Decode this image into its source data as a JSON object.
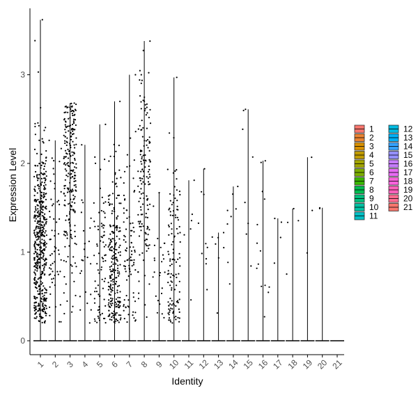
{
  "chart_data": {
    "type": "scatter",
    "subtype": "violin-jitter",
    "xlabel": "Identity",
    "ylabel": "Expression Level",
    "ylim": [
      0,
      3.7
    ],
    "yticks": [
      0,
      1,
      2,
      3
    ],
    "categories": [
      "1",
      "2",
      "3",
      "4",
      "5",
      "6",
      "7",
      "8",
      "9",
      "10",
      "11",
      "12",
      "13",
      "14",
      "15",
      "16",
      "17",
      "18",
      "19",
      "20",
      "21"
    ],
    "max_values": [
      3.62,
      2.26,
      2.68,
      2.21,
      2.44,
      2.7,
      3.0,
      3.38,
      1.67,
      2.97,
      1.81,
      1.94,
      1.22,
      1.74,
      2.61,
      2.03,
      1.38,
      1.49,
      2.07,
      1.5,
      0
    ],
    "point_counts": [
      480,
      60,
      230,
      25,
      80,
      230,
      90,
      150,
      25,
      120,
      6,
      10,
      7,
      8,
      8,
      14,
      4,
      4,
      3,
      2,
      0
    ],
    "point_centers": [
      1.1,
      1.1,
      1.9,
      0.9,
      1.0,
      0.8,
      1.0,
      1.7,
      0.8,
      0.9,
      1.2,
      1.3,
      0.9,
      1.2,
      1.7,
      1.0,
      1.1,
      0.9,
      1.4,
      1.4,
      0
    ],
    "zero_level": 0,
    "legend_position": "right",
    "legend": {
      "entries": [
        "1",
        "2",
        "3",
        "4",
        "5",
        "6",
        "7",
        "8",
        "9",
        "10",
        "11",
        "12",
        "13",
        "14",
        "15",
        "16",
        "17",
        "18",
        "19",
        "20",
        "21"
      ],
      "colors": [
        "#F8766D",
        "#EA8331",
        "#D89000",
        "#C09B00",
        "#A3A500",
        "#7CAE00",
        "#39B600",
        "#00BB4E",
        "#00BF7D",
        "#00C1A3",
        "#00BFC4",
        "#00BAE0",
        "#00B0F6",
        "#35A2FF",
        "#9590FF",
        "#C77CFF",
        "#E76BF3",
        "#FA62DB",
        "#FF62BC",
        "#FF6C91",
        "#F8766D"
      ]
    },
    "grid": false
  }
}
